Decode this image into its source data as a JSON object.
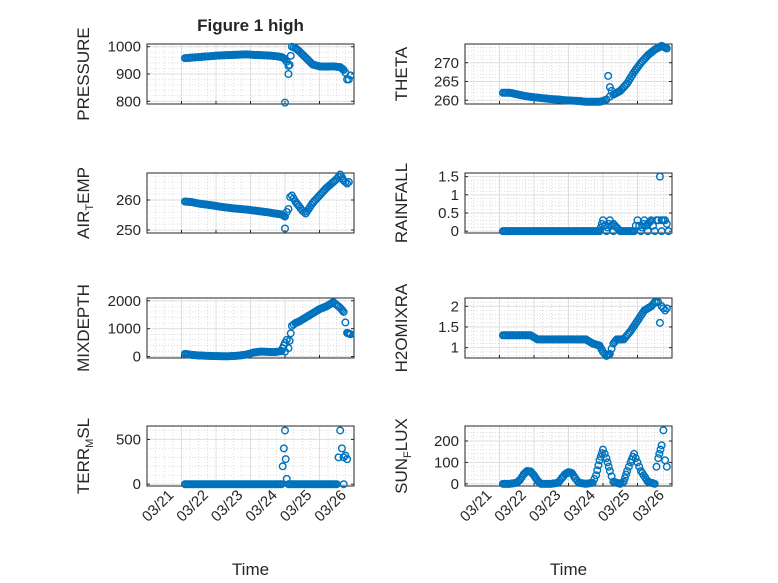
{
  "title": "Figure 1 high",
  "colors": {
    "marker": "#0072BD",
    "axis": "#262626",
    "grid": "#dfdfdf",
    "grid_minor": "#c8c8c8"
  },
  "chart_data": [
    {
      "type": "scatter",
      "title": "Figure 1 high",
      "ylabel": "PRESSURE",
      "ylabel_base": "PRESSURE",
      "ylabel_sub": "",
      "ylabel_tail": "",
      "xlabel": "",
      "ylim": [
        790,
        1010
      ],
      "yticks": [
        800,
        900,
        1000
      ],
      "xticks": [],
      "grid": true,
      "x": [
        1.1,
        1.3,
        1.5,
        1.7,
        1.9,
        2.1,
        2.3,
        2.5,
        2.7,
        2.9,
        3.1,
        3.3,
        3.5,
        3.7,
        3.9,
        4.0,
        4.05,
        4.1,
        4.2,
        4.3,
        4.4,
        4.6,
        4.8,
        5.0,
        5.2,
        5.4,
        5.6,
        5.7,
        5.75,
        5.8,
        5.85,
        5.9,
        4.0,
        4.1
      ],
      "y": [
        958,
        960,
        962,
        964,
        966,
        968,
        969,
        970,
        971,
        972,
        970,
        969,
        968,
        966,
        962,
        955,
        945,
        930,
        1000,
        995,
        985,
        960,
        935,
        928,
        927,
        928,
        925,
        915,
        905,
        880,
        880,
        895,
        795,
        900
      ]
    },
    {
      "type": "scatter",
      "title": "",
      "ylabel": "THETA",
      "ylabel_base": "THETA",
      "ylabel_sub": "",
      "ylabel_tail": "",
      "xlabel": "",
      "ylim": [
        259,
        275
      ],
      "yticks": [
        260,
        265,
        270
      ],
      "xticks": [],
      "grid": true,
      "x": [
        1.1,
        1.3,
        1.5,
        1.7,
        1.9,
        2.1,
        2.3,
        2.5,
        2.7,
        2.9,
        3.1,
        3.3,
        3.5,
        3.7,
        3.9,
        4.0,
        4.1,
        4.2,
        4.3,
        4.5,
        4.7,
        4.9,
        5.1,
        5.3,
        5.5,
        5.7,
        5.85,
        4.15,
        4.2
      ],
      "y": [
        262.0,
        262.0,
        261.6,
        261.2,
        260.9,
        260.7,
        260.5,
        260.3,
        260.2,
        260.0,
        259.9,
        259.8,
        259.6,
        259.6,
        259.6,
        259.8,
        260.2,
        261.0,
        261.5,
        262.5,
        264.5,
        267.5,
        270.0,
        272.0,
        273.5,
        274.5,
        273.8,
        266.5,
        263.5
      ]
    },
    {
      "type": "scatter",
      "title": "",
      "ylabel": "AIR_TEMP",
      "ylabel_base": "AIR",
      "ylabel_sub": "T",
      "ylabel_tail": "EMP",
      "xlabel": "",
      "ylim": [
        249,
        269
      ],
      "yticks": [
        250,
        260
      ],
      "xticks": [],
      "grid": true,
      "x": [
        1.1,
        1.3,
        1.5,
        1.7,
        1.9,
        2.1,
        2.3,
        2.5,
        2.7,
        2.9,
        3.1,
        3.3,
        3.5,
        3.7,
        3.9,
        4.0,
        4.05,
        4.1,
        4.15,
        4.2,
        4.3,
        4.4,
        4.5,
        4.6,
        4.8,
        5.0,
        5.2,
        5.4,
        5.5,
        5.6,
        5.7,
        5.8,
        5.85,
        4.0
      ],
      "y": [
        259.5,
        259.3,
        258.8,
        258.5,
        258.2,
        257.8,
        257.5,
        257.2,
        257.0,
        256.8,
        256.5,
        256.2,
        255.9,
        255.5,
        255.2,
        254.5,
        256.0,
        257.0,
        261.0,
        261.5,
        259.5,
        258.0,
        256.5,
        255.5,
        259.0,
        261.5,
        264.0,
        266.0,
        267.0,
        268.5,
        266.5,
        265.5,
        266.0,
        250.5
      ]
    },
    {
      "type": "scatter",
      "title": "",
      "ylabel": "RAINFALL",
      "ylabel_base": "RAINFALL",
      "ylabel_sub": "",
      "ylabel_tail": "",
      "xlabel": "",
      "ylim": [
        -0.05,
        1.6
      ],
      "yticks": [
        0,
        0.5,
        1,
        1.5
      ],
      "xticks": [],
      "grid": true,
      "x": [
        1.1,
        1.3,
        1.5,
        1.7,
        1.9,
        2.1,
        2.3,
        2.5,
        2.7,
        2.9,
        3.1,
        3.3,
        3.5,
        3.7,
        3.9,
        4.1,
        4.3,
        4.5,
        4.7,
        4.9,
        5.1,
        5.3,
        5.5,
        5.7,
        5.9,
        4.0,
        4.2,
        4.3,
        5.0,
        5.2,
        5.3,
        5.4,
        5.55,
        5.6,
        5.7,
        5.8,
        5.85,
        5.65
      ],
      "y": [
        0,
        0,
        0,
        0,
        0,
        0,
        0,
        0,
        0,
        0,
        0,
        0,
        0,
        0,
        0,
        0,
        0,
        0,
        0,
        0,
        0,
        0,
        0,
        0,
        0,
        0.3,
        0.3,
        0.2,
        0.3,
        0.3,
        0.2,
        0.3,
        0.3,
        0.3,
        0.3,
        0.3,
        0.2,
        1.5
      ]
    },
    {
      "type": "scatter",
      "title": "",
      "ylabel": "MIXDEPTH",
      "ylabel_base": "MIXDEPTH",
      "ylabel_sub": "",
      "ylabel_tail": "",
      "xlabel": "",
      "ylim": [
        -50,
        2100
      ],
      "yticks": [
        0,
        1000,
        2000
      ],
      "xticks": [],
      "grid": true,
      "x": [
        1.1,
        1.3,
        1.5,
        1.7,
        1.9,
        2.1,
        2.3,
        2.5,
        2.7,
        2.9,
        3.1,
        3.3,
        3.5,
        3.7,
        3.9,
        4.0,
        4.05,
        4.1,
        4.2,
        4.3,
        4.4,
        4.6,
        4.8,
        5.0,
        5.2,
        5.4,
        5.5,
        5.6,
        5.7,
        5.8,
        5.9,
        4.0
      ],
      "y": [
        100,
        60,
        40,
        30,
        20,
        15,
        10,
        20,
        40,
        80,
        150,
        180,
        170,
        160,
        200,
        500,
        600,
        300,
        1100,
        1200,
        1250,
        1400,
        1550,
        1700,
        1800,
        1950,
        1850,
        1750,
        1600,
        850,
        800,
        180
      ]
    },
    {
      "type": "scatter",
      "title": "",
      "ylabel": "H2OMIXRA",
      "ylabel_base": "H2OMIXRA",
      "ylabel_sub": "",
      "ylabel_tail": "",
      "xlabel": "",
      "ylim": [
        0.75,
        2.2
      ],
      "yticks": [
        1,
        1.5,
        2
      ],
      "xticks": [],
      "grid": true,
      "x": [
        1.1,
        1.3,
        1.5,
        1.7,
        1.9,
        2.1,
        2.3,
        2.5,
        2.7,
        2.9,
        3.1,
        3.3,
        3.5,
        3.7,
        3.9,
        4.0,
        4.1,
        4.2,
        4.3,
        4.4,
        4.6,
        4.8,
        5.0,
        5.2,
        5.4,
        5.5,
        5.6,
        5.7,
        5.8,
        5.85,
        5.65
      ],
      "y": [
        1.3,
        1.3,
        1.3,
        1.3,
        1.3,
        1.2,
        1.2,
        1.2,
        1.2,
        1.2,
        1.2,
        1.2,
        1.2,
        1.1,
        1.05,
        0.9,
        0.8,
        0.85,
        1.1,
        1.2,
        1.2,
        1.4,
        1.65,
        1.9,
        2.0,
        2.1,
        2.1,
        2.0,
        1.9,
        1.95,
        1.6
      ]
    },
    {
      "type": "scatter",
      "title": "",
      "ylabel": "TERR_MSL",
      "ylabel_base": "TERR",
      "ylabel_sub": "M",
      "ylabel_tail": "SL",
      "xlabel": "Time",
      "ylim": [
        -20,
        650
      ],
      "yticks": [
        0,
        500
      ],
      "xticks": [
        "03/21",
        "03/22",
        "03/23",
        "03/24",
        "03/25",
        "03/26"
      ],
      "grid": true,
      "x": [
        1.1,
        1.3,
        1.5,
        1.7,
        1.9,
        2.1,
        2.3,
        2.5,
        2.7,
        2.9,
        3.1,
        3.3,
        3.5,
        3.7,
        3.9,
        4.1,
        4.3,
        4.5,
        4.7,
        4.9,
        5.1,
        5.3,
        5.5,
        5.7,
        4.0,
        4.02,
        4.05,
        5.6,
        5.65,
        5.7,
        5.8,
        5.75
      ],
      "y": [
        0,
        0,
        0,
        0,
        0,
        0,
        0,
        0,
        0,
        0,
        0,
        0,
        0,
        0,
        0,
        0,
        0,
        0,
        0,
        0,
        0,
        0,
        0,
        0,
        600,
        280,
        60,
        600,
        400,
        300,
        280,
        320
      ]
    },
    {
      "type": "scatter",
      "title": "",
      "ylabel": "SUN_FLUX",
      "ylabel_base": "SUN",
      "ylabel_sub": "F",
      "ylabel_tail": "LUX",
      "xlabel": "Time",
      "ylim": [
        -10,
        270
      ],
      "yticks": [
        0,
        100,
        200
      ],
      "xticks": [
        "03/21",
        "03/22",
        "03/23",
        "03/24",
        "03/25",
        "03/26"
      ],
      "grid": true,
      "x": [
        1.1,
        1.3,
        1.5,
        1.6,
        1.7,
        1.8,
        1.9,
        2.0,
        2.1,
        2.2,
        2.3,
        2.5,
        2.7,
        2.8,
        2.9,
        3.0,
        3.1,
        3.2,
        3.3,
        3.5,
        3.7,
        3.8,
        3.9,
        4.0,
        4.1,
        4.2,
        4.3,
        4.5,
        4.6,
        4.7,
        4.8,
        4.9,
        5.0,
        5.1,
        5.3,
        5.5,
        5.55,
        5.6,
        5.7,
        5.75,
        5.8,
        5.85
      ],
      "y": [
        0,
        0,
        5,
        20,
        45,
        60,
        58,
        40,
        15,
        0,
        0,
        0,
        5,
        25,
        45,
        55,
        50,
        25,
        5,
        0,
        5,
        40,
        110,
        160,
        120,
        60,
        10,
        0,
        10,
        60,
        100,
        140,
        100,
        60,
        10,
        0,
        80,
        120,
        180,
        250,
        110,
        80
      ]
    }
  ]
}
